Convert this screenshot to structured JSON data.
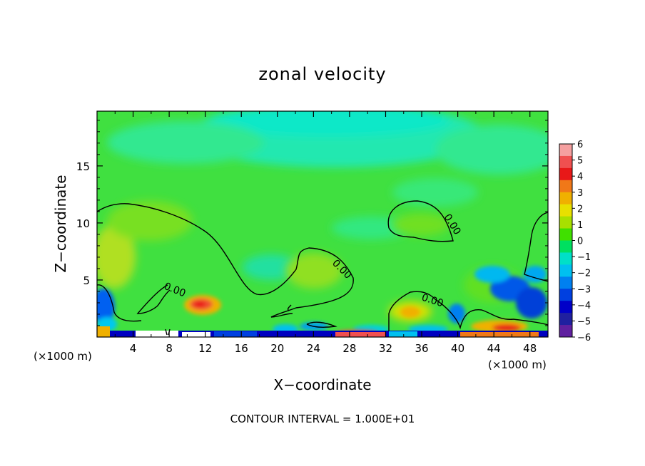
{
  "chart_data": {
    "type": "heatmap",
    "title": "zonal velocity",
    "xlabel": "X−coordinate",
    "ylabel": "Z−coordinate",
    "x_scale_note_left": "(×1000 m)",
    "x_scale_note_right": "(×1000 m)",
    "xlim": [
      0,
      50
    ],
    "ylim": [
      0,
      19.8
    ],
    "x_ticks": [
      4,
      8,
      12,
      16,
      20,
      24,
      28,
      32,
      36,
      40,
      44,
      48
    ],
    "y_ticks": [
      5,
      10,
      15
    ],
    "colorbar": {
      "ticks": [
        "6",
        "5",
        "4",
        "3",
        "2",
        "1",
        "0",
        "−1",
        "−2",
        "−3",
        "−4",
        "−5",
        "−6"
      ],
      "colors_top_to_bottom": [
        "#f5a0a0",
        "#f05050",
        "#e81818",
        "#f07818",
        "#f0b000",
        "#e8e000",
        "#a8e000",
        "#40e000",
        "#00e060",
        "#00e0c8",
        "#00c0f0",
        "#0080f0",
        "#0040e0",
        "#0000c8",
        "#2020a0",
        "#6020a0"
      ]
    },
    "contour_label": "0.00",
    "note": "CONTOUR INTERVAL = 1.000E+01"
  }
}
